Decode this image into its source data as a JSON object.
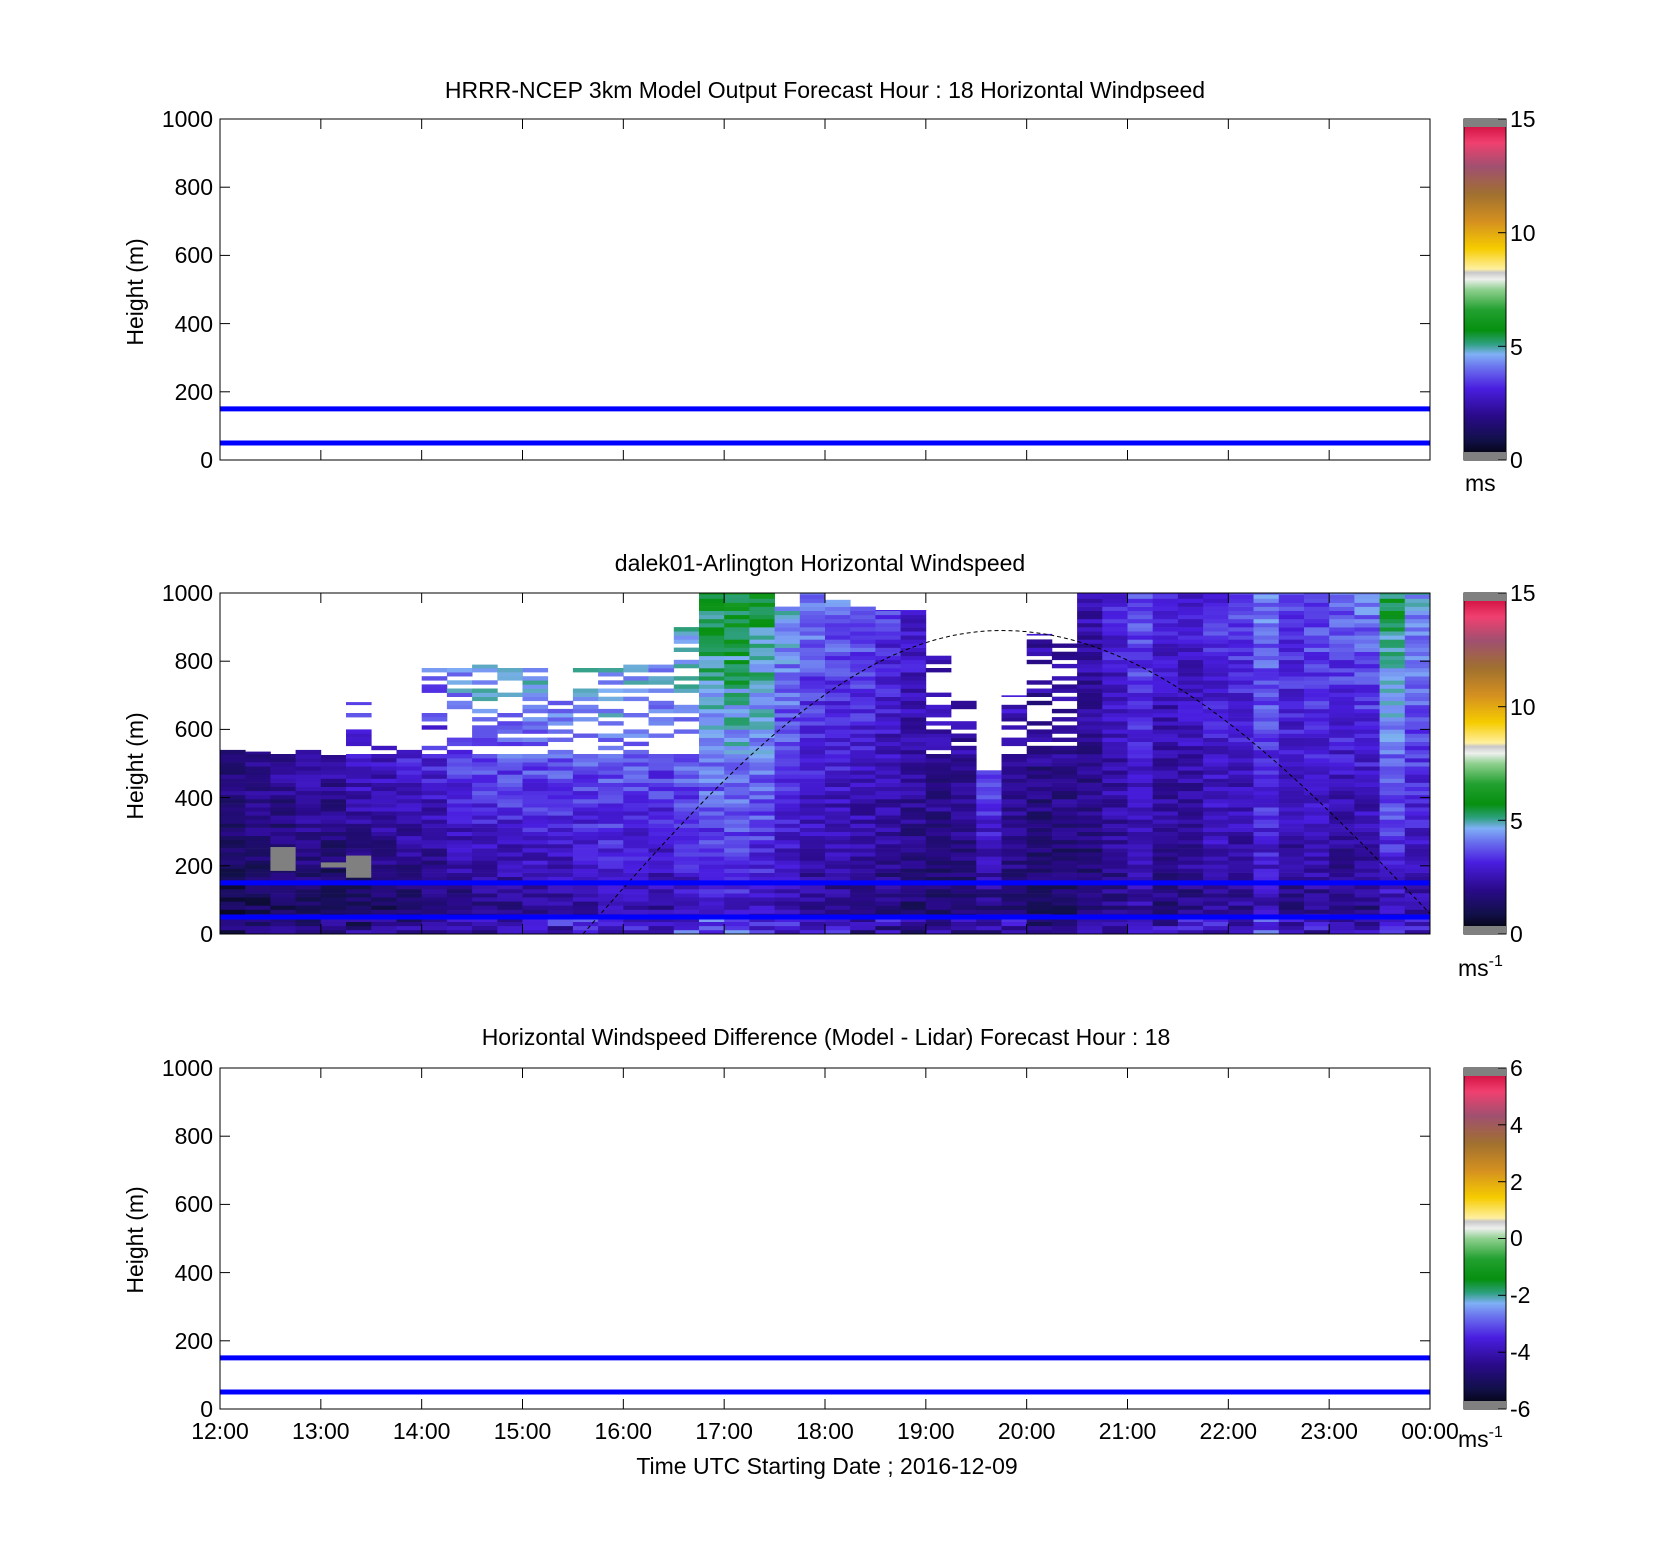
{
  "figure": {
    "xlabel": "Time UTC  Starting Date ; 2016-12-09",
    "x_ticks": [
      "12:00",
      "13:00",
      "14:00",
      "15:00",
      "16:00",
      "17:00",
      "18:00",
      "19:00",
      "20:00",
      "21:00",
      "22:00",
      "23:00",
      "00:00"
    ]
  },
  "chart_data": [
    {
      "type": "heatmap",
      "title": "HRRR-NCEP 3km Model Output   Forecast Hour : 18 Horizontal Windpseed",
      "ylabel": "Height (m)",
      "ylim": [
        0,
        1000
      ],
      "y_ticks": [
        0,
        200,
        400,
        600,
        800,
        1000
      ],
      "xlim_hours": [
        12,
        24
      ],
      "colorbar": {
        "ticks": [
          0,
          5,
          10,
          15
        ],
        "range": [
          0,
          15
        ],
        "unit": "ms"
      },
      "reference_lines_m": [
        150,
        50
      ],
      "reference_line_color": "#0000ff",
      "data": "empty"
    },
    {
      "type": "heatmap",
      "title": "dalek01-Arlington  Horizontal Windspeed",
      "ylabel": "Height (m)",
      "ylim": [
        0,
        1000
      ],
      "y_ticks": [
        0,
        200,
        400,
        600,
        800,
        1000
      ],
      "xlim_hours": [
        12,
        24
      ],
      "colorbar": {
        "ticks": [
          0,
          5,
          10,
          15
        ],
        "range": [
          0,
          15
        ],
        "unit": "ms",
        "unit_sup": "-1"
      },
      "reference_lines_m": [
        150,
        50
      ],
      "reference_line_color": "#0000ff",
      "column_width_hours": 0.25,
      "columns": [
        {
          "t": 12.0,
          "top": 540,
          "low": 0.8,
          "high": 2.0
        },
        {
          "t": 12.25,
          "top": 535,
          "low": 0.9,
          "high": 2.2
        },
        {
          "t": 12.5,
          "top": 535,
          "low": 0.9,
          "high": 2.3
        },
        {
          "t": 12.75,
          "top": 540,
          "low": 1.0,
          "high": 2.6
        },
        {
          "t": 13.0,
          "top": 525,
          "low": 0.8,
          "high": 2.4
        },
        {
          "t": 13.25,
          "top": 680,
          "low": 0.9,
          "high": 3.5
        },
        {
          "t": 13.5,
          "top": 560,
          "low": 1.0,
          "high": 3.0
        },
        {
          "t": 13.75,
          "top": 540,
          "low": 1.1,
          "high": 3.2
        },
        {
          "t": 14.0,
          "top": 790,
          "low": 1.3,
          "high": 4.0
        },
        {
          "t": 14.25,
          "top": 790,
          "low": 1.4,
          "high": 4.6
        },
        {
          "t": 14.5,
          "top": 790,
          "low": 1.5,
          "high": 4.8
        },
        {
          "t": 14.75,
          "top": 790,
          "low": 1.6,
          "high": 4.8
        },
        {
          "t": 15.0,
          "top": 780,
          "low": 1.8,
          "high": 4.7
        },
        {
          "t": 15.25,
          "top": 780,
          "low": 1.9,
          "high": 4.6
        },
        {
          "t": 15.5,
          "top": 790,
          "low": 2.0,
          "high": 4.7
        },
        {
          "t": 15.75,
          "top": 790,
          "low": 2.2,
          "high": 4.8
        },
        {
          "t": 16.0,
          "top": 790,
          "low": 2.1,
          "high": 4.6
        },
        {
          "t": 16.25,
          "top": 790,
          "low": 2.0,
          "high": 4.5
        },
        {
          "t": 16.5,
          "top": 900,
          "low": 2.3,
          "high": 5.0
        },
        {
          "t": 16.75,
          "top": 1000,
          "low": 2.5,
          "high": 5.6
        },
        {
          "t": 17.0,
          "top": 1000,
          "low": 2.6,
          "high": 5.8
        },
        {
          "t": 17.25,
          "top": 1000,
          "low": 2.4,
          "high": 5.6
        },
        {
          "t": 17.5,
          "top": 960,
          "low": 2.1,
          "high": 4.6
        },
        {
          "t": 17.75,
          "top": 1000,
          "low": 1.8,
          "high": 4.2
        },
        {
          "t": 18.0,
          "top": 980,
          "low": 1.7,
          "high": 4.0
        },
        {
          "t": 18.25,
          "top": 960,
          "low": 1.6,
          "high": 3.8
        },
        {
          "t": 18.5,
          "top": 950,
          "low": 1.5,
          "high": 3.4
        },
        {
          "t": 18.75,
          "top": 950,
          "low": 1.4,
          "high": 3.0
        },
        {
          "t": 19.0,
          "top": 860,
          "low": 1.3,
          "high": 2.7
        },
        {
          "t": 19.25,
          "top": 720,
          "low": 1.3,
          "high": 2.6
        },
        {
          "t": 19.5,
          "top": 480,
          "low": 1.5,
          "high": 3.6
        },
        {
          "t": 19.75,
          "top": 700,
          "low": 1.4,
          "high": 2.8
        },
        {
          "t": 20.0,
          "top": 880,
          "low": 1.2,
          "high": 2.4
        },
        {
          "t": 20.25,
          "top": 860,
          "low": 1.3,
          "high": 2.4
        },
        {
          "t": 20.5,
          "top": 1000,
          "low": 1.4,
          "high": 2.5
        },
        {
          "t": 20.75,
          "top": 1000,
          "low": 1.7,
          "high": 3.2
        },
        {
          "t": 21.0,
          "top": 1000,
          "low": 2.1,
          "high": 3.8
        },
        {
          "t": 21.25,
          "top": 1000,
          "low": 1.6,
          "high": 3.0
        },
        {
          "t": 21.5,
          "top": 1000,
          "low": 1.8,
          "high": 3.0
        },
        {
          "t": 21.75,
          "top": 1000,
          "low": 2.2,
          "high": 3.4
        },
        {
          "t": 22.0,
          "top": 1000,
          "low": 1.9,
          "high": 3.6
        },
        {
          "t": 22.25,
          "top": 1000,
          "low": 2.5,
          "high": 4.2
        },
        {
          "t": 22.5,
          "top": 1000,
          "low": 1.8,
          "high": 3.6
        },
        {
          "t": 22.75,
          "top": 1000,
          "low": 1.9,
          "high": 3.8
        },
        {
          "t": 23.0,
          "top": 1000,
          "low": 1.6,
          "high": 3.9
        },
        {
          "t": 23.25,
          "top": 1000,
          "low": 1.5,
          "high": 4.2
        },
        {
          "t": 23.5,
          "top": 1000,
          "low": 2.2,
          "high": 5.6
        },
        {
          "t": 23.75,
          "top": 1000,
          "low": 2.0,
          "high": 4.6
        }
      ],
      "missing_cells": [
        {
          "t": 12.5,
          "z_from": 185,
          "z_to": 255
        },
        {
          "t": 13.0,
          "z_from": 195,
          "z_to": 210
        },
        {
          "t": 13.25,
          "z_from": 165,
          "z_to": 230
        }
      ],
      "sun_curve": {
        "start_hour": 15.6,
        "peak_hour": 19.75,
        "end_hour": 24.0,
        "peak_m": 890,
        "end_m": 60
      }
    },
    {
      "type": "heatmap",
      "title": "Horizontal Windspeed Difference (Model - Lidar) Forecast Hour : 18",
      "ylabel": "Height (m)",
      "ylim": [
        0,
        1000
      ],
      "y_ticks": [
        0,
        200,
        400,
        600,
        800,
        1000
      ],
      "xlim_hours": [
        12,
        24
      ],
      "colorbar": {
        "ticks": [
          -6,
          -4,
          -2,
          0,
          2,
          4,
          6
        ],
        "range": [
          -6,
          6
        ],
        "unit": "ms",
        "unit_sup": "-1"
      },
      "reference_lines_m": [
        150,
        50
      ],
      "reference_line_color": "#0000ff",
      "data": "empty"
    }
  ]
}
